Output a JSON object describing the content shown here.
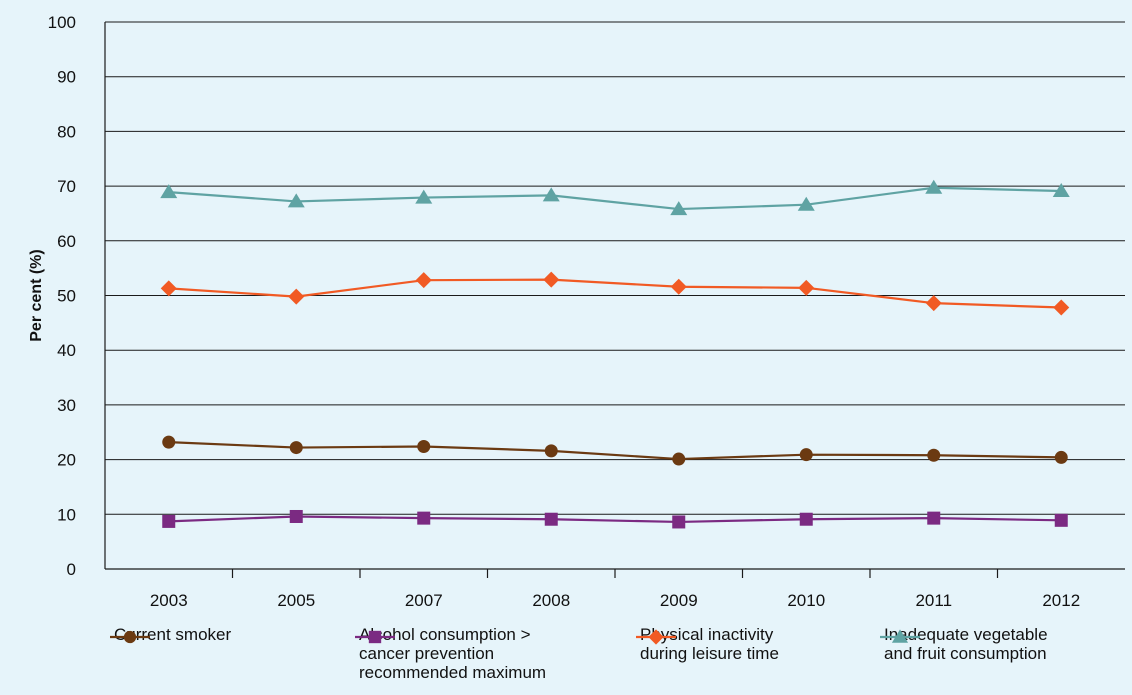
{
  "chart_data": {
    "type": "line",
    "categories": [
      "2003",
      "2005",
      "2007",
      "2008",
      "2009",
      "2010",
      "2011",
      "2012"
    ],
    "ylabel": "Per cent (%)",
    "ylim": [
      0,
      100
    ],
    "yticks": [
      0,
      10,
      20,
      30,
      40,
      50,
      60,
      70,
      80,
      90,
      100
    ],
    "grid": "horizontal",
    "legend_position": "bottom",
    "series": [
      {
        "name": "Current smoker",
        "color": "#6b3a12",
        "marker": "circle",
        "values": [
          23.2,
          22.2,
          22.4,
          21.6,
          20.1,
          20.9,
          20.8,
          20.4
        ]
      },
      {
        "name": "Alcohol consumption > cancer prevention recommended maximum",
        "color": "#7b2a82",
        "marker": "square",
        "values": [
          8.7,
          9.6,
          9.3,
          9.1,
          8.6,
          9.1,
          9.3,
          8.9
        ]
      },
      {
        "name": "Physical inactivity during leisure time",
        "color": "#f15a24",
        "marker": "diamond",
        "values": [
          51.3,
          49.8,
          52.8,
          52.9,
          51.6,
          51.4,
          48.6,
          47.8
        ]
      },
      {
        "name": "Inadequate vegetable and fruit consumption",
        "color": "#5fa3a3",
        "marker": "triangle",
        "values": [
          68.9,
          67.2,
          67.9,
          68.3,
          65.8,
          66.6,
          69.7,
          69.1
        ]
      }
    ]
  },
  "legend": [
    {
      "text": "Current smoker"
    },
    {
      "text": "Alcohol consumption >\ncancer prevention\nrecommended maximum"
    },
    {
      "text": "Physical inactivity\nduring leisure time"
    },
    {
      "text": "Inadequate vegetable\nand fruit consumption"
    }
  ]
}
